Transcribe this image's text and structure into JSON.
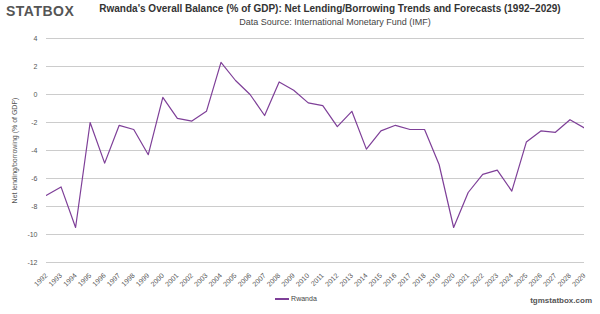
{
  "chart_data": {
    "type": "line",
    "logo": "STATBOX",
    "title": "Rwanda's Overall Balance (% of GDP): Net Lending/Borrowing Trends and Forecasts (1992–2029)",
    "subtitle": "Data Source: International Monetary Fund (IMF)",
    "caption": "tgmstatbox.com",
    "y_label": "Net lending/borrowing (% of GDP)",
    "x": [
      1992,
      1993,
      1994,
      1995,
      1996,
      1997,
      1998,
      1999,
      2000,
      2001,
      2002,
      2003,
      2004,
      2005,
      2006,
      2007,
      2008,
      2009,
      2010,
      2011,
      2012,
      2013,
      2014,
      2015,
      2016,
      2017,
      2018,
      2019,
      2020,
      2021,
      2022,
      2023,
      2024,
      2025,
      2026,
      2027,
      2028,
      2029
    ],
    "series": [
      {
        "name": "Rwanda",
        "color": "#7e3f98",
        "values": [
          -7.2,
          -6.6,
          -9.5,
          -2.0,
          -4.9,
          -2.2,
          -2.5,
          -4.3,
          -0.2,
          -1.7,
          -1.9,
          -1.2,
          2.3,
          1.0,
          0.0,
          -1.5,
          0.9,
          0.3,
          -0.6,
          -0.8,
          -2.3,
          -1.2,
          -3.9,
          -2.6,
          -2.2,
          -2.5,
          -2.5,
          -5.0,
          -9.5,
          -7.0,
          -5.7,
          -5.4,
          -6.9,
          -3.4,
          -2.6,
          -2.7,
          -1.8,
          -2.4
        ]
      }
    ],
    "xlim": [
      1992,
      2029
    ],
    "xticks": [
      1992,
      1993,
      1994,
      1995,
      1996,
      1997,
      1998,
      1999,
      2000,
      2001,
      2002,
      2003,
      2004,
      2005,
      2006,
      2007,
      2008,
      2009,
      2010,
      2011,
      2012,
      2013,
      2014,
      2015,
      2016,
      2017,
      2018,
      2019,
      2020,
      2021,
      2022,
      2023,
      2024,
      2025,
      2026,
      2027,
      2028,
      2029
    ],
    "ylim": [
      -12,
      4
    ],
    "yticks": [
      -12,
      -10,
      -8,
      -6,
      -4,
      -2,
      0,
      2,
      4
    ],
    "grid": true,
    "legend": "bottom"
  }
}
